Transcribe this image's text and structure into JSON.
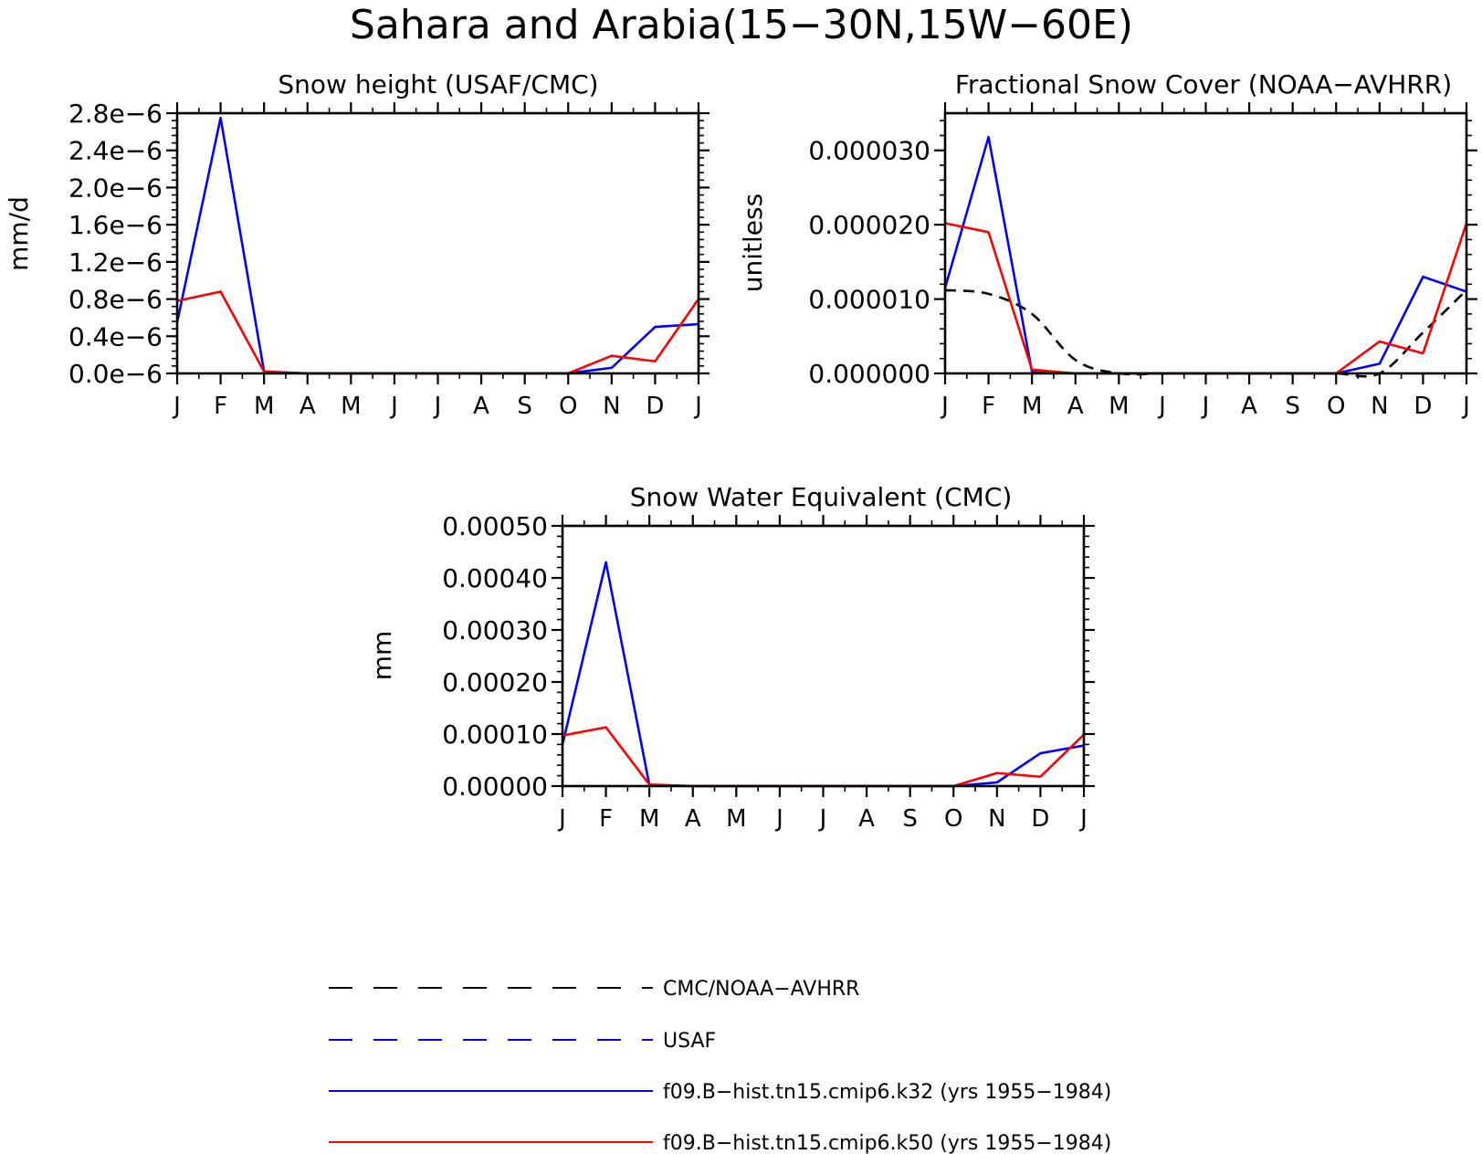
{
  "figure_title": "Sahara and Arabia(15−30N,15W−60E)",
  "months": [
    "J",
    "F",
    "M",
    "A",
    "M",
    "J",
    "J",
    "A",
    "S",
    "O",
    "N",
    "D",
    "J"
  ],
  "colors": {
    "obs": "#000000",
    "usaf": "#0000ff",
    "k32": "#0000ff",
    "k50": "#ff0000"
  },
  "legend": [
    {
      "label": "CMC/NOAA−AVHRR",
      "style": "dashed",
      "color": "#000000"
    },
    {
      "label": "USAF",
      "style": "dashed",
      "color": "#0000ff"
    },
    {
      "label": "f09.B−hist.tn15.cmip6.k32 (yrs 1955−1984)",
      "style": "solid",
      "color": "#0000ff"
    },
    {
      "label": "f09.B−hist.tn15.cmip6.k50 (yrs 1955−1984)",
      "style": "solid",
      "color": "#ff0000"
    }
  ],
  "chart_data": [
    {
      "type": "line",
      "title": "Snow height (USAF/CMC)",
      "ylabel": "mm/d",
      "xlabel": "",
      "ylim": [
        0,
        2.8e-06
      ],
      "yticks": [
        0,
        4e-07,
        8e-07,
        1.2e-06,
        1.6e-06,
        2e-06,
        2.4e-06,
        2.8e-06
      ],
      "ytick_labels": [
        "0.0e−6",
        "0.4e−6",
        "0.8e−6",
        "1.2e−6",
        "1.6e−6",
        "2.0e−6",
        "2.4e−6",
        "2.8e−6"
      ],
      "series": [
        {
          "key": "k32",
          "values": [
            5.5e-07,
            2.75e-06,
            2e-08,
            0,
            0,
            0,
            0,
            0,
            0,
            0,
            6e-08,
            5e-07,
            5.3e-07
          ]
        },
        {
          "key": "k50",
          "values": [
            7.8e-07,
            8.8e-07,
            2e-08,
            0,
            0,
            0,
            0,
            0,
            0,
            0,
            1.9e-07,
            1.3e-07,
            8e-07
          ]
        }
      ]
    },
    {
      "type": "line",
      "title": "Fractional Snow Cover (NOAA−AVHRR)",
      "ylabel": "unitless",
      "xlabel": "",
      "ylim": [
        0,
        3.5e-05
      ],
      "yticks": [
        0,
        1e-05,
        2e-05,
        3e-05
      ],
      "ytick_labels": [
        "0.000000",
        "0.000010",
        "0.000020",
        "0.000030"
      ],
      "series": [
        {
          "key": "obs",
          "dashed": true,
          "smooth": true,
          "values": [
            1.12e-05,
            1.07e-05,
            8e-06,
            1.8e-06,
            0,
            0,
            0,
            0,
            0,
            0,
            0,
            5.5e-06,
            1.12e-05
          ]
        },
        {
          "key": "k32",
          "values": [
            1.15e-05,
            3.18e-05,
            2e-07,
            0,
            0,
            0,
            0,
            0,
            0,
            0,
            1.3e-06,
            1.3e-05,
            1.1e-05
          ]
        },
        {
          "key": "k50",
          "values": [
            2.02e-05,
            1.9e-05,
            5e-07,
            0,
            0,
            0,
            0,
            0,
            0,
            0,
            4.3e-06,
            2.7e-06,
            2.02e-05
          ]
        }
      ]
    },
    {
      "type": "line",
      "title": "Snow Water Equivalent (CMC)",
      "ylabel": "mm",
      "xlabel": "",
      "ylim": [
        0,
        0.0005
      ],
      "yticks": [
        0,
        0.0001,
        0.0002,
        0.0003,
        0.0004,
        0.0005
      ],
      "ytick_labels": [
        "0.00000",
        "0.00010",
        "0.00020",
        "0.00030",
        "0.00040",
        "0.00050"
      ],
      "series": [
        {
          "key": "k32",
          "values": [
            8e-05,
            0.00043,
            2e-06,
            0,
            0,
            0,
            0,
            0,
            0,
            0,
            7e-06,
            6.3e-05,
            7.8e-05
          ]
        },
        {
          "key": "k50",
          "values": [
            9.7e-05,
            0.000113,
            3e-06,
            0,
            0,
            0,
            0,
            0,
            0,
            0,
            2.5e-05,
            1.8e-05,
            9.9e-05
          ]
        }
      ]
    }
  ]
}
